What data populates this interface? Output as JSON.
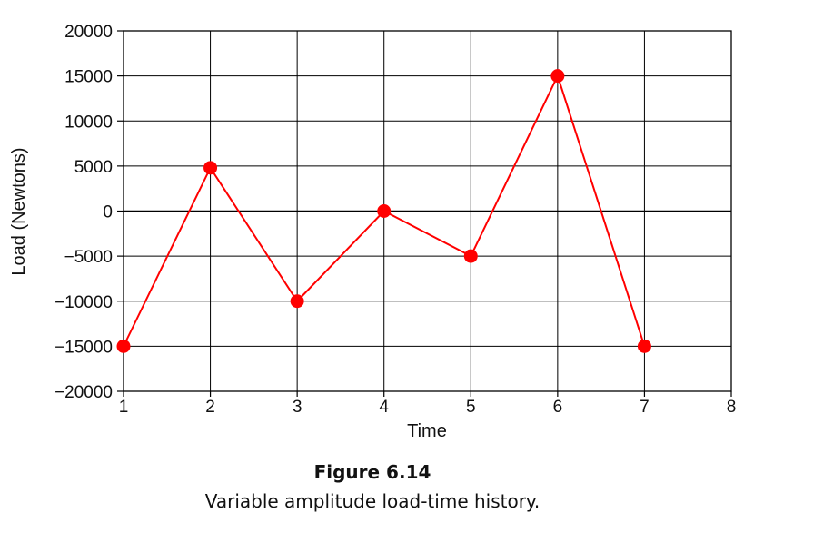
{
  "chart_data": {
    "type": "line",
    "x": [
      1,
      2,
      3,
      4,
      5,
      6,
      7
    ],
    "series": [
      {
        "values": [
          -15000,
          4800,
          -10000,
          0,
          -5000,
          15000,
          -15000
        ],
        "color": "#ff0000"
      }
    ],
    "xlabel": "Time",
    "ylabel": "Load (Newtons)",
    "xlim": [
      1,
      8
    ],
    "ylim": [
      -20000,
      20000
    ],
    "xticks": [
      "1",
      "2",
      "3",
      "4",
      "5",
      "6",
      "7",
      "8"
    ],
    "yticks": [
      "20000",
      "15000",
      "10000",
      "5000",
      "0",
      "−5000",
      "−10000",
      "−15000",
      "−20000"
    ],
    "grid": true,
    "marker": "circle"
  },
  "caption": {
    "title": "Figure 6.14",
    "text": "Variable amplitude load-time history."
  }
}
